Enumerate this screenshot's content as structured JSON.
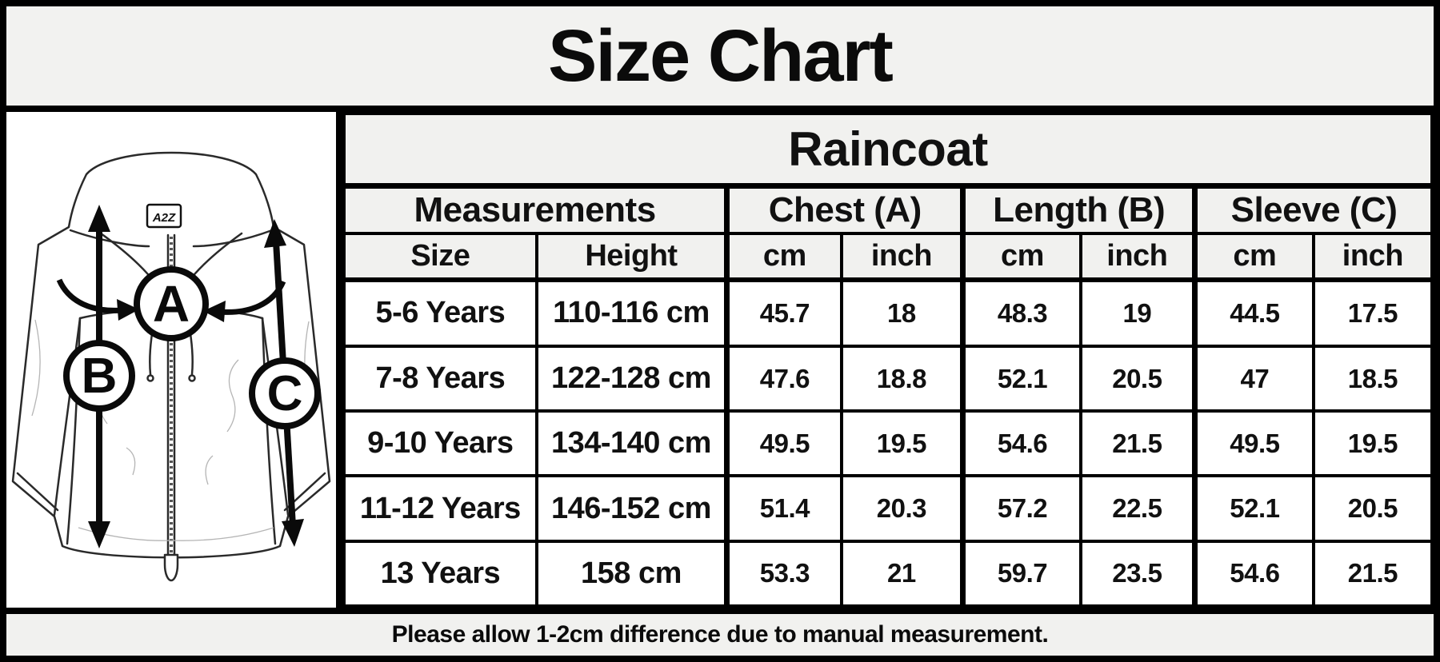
{
  "title": "Size Chart",
  "footer_note": "Please allow 1-2cm difference due to manual measurement.",
  "diagram": {
    "brand": "A2Z",
    "label_a": "A",
    "label_b": "B",
    "label_c": "C"
  },
  "colors": {
    "band_bg": "#f1f1ef",
    "cell_bg": "#ffffff",
    "border": "#000000",
    "text": "#111111"
  },
  "chart_data": {
    "type": "table",
    "title": "Raincoat",
    "group_header": "Measurements",
    "groups": [
      {
        "label": "Chest (A)"
      },
      {
        "label": "Length (B)"
      },
      {
        "label": "Sleeve (C)"
      }
    ],
    "columns": [
      "Size",
      "Height",
      "cm",
      "inch",
      "cm",
      "inch",
      "cm",
      "inch"
    ],
    "column_keys": [
      "size",
      "height",
      "chest-cm",
      "chest-inch",
      "length-cm",
      "length-inch",
      "sleeve-cm",
      "sleeve-inch"
    ],
    "rows": [
      [
        "5-6 Years",
        "110-116 cm",
        "45.7",
        "18",
        "48.3",
        "19",
        "44.5",
        "17.5"
      ],
      [
        "7-8 Years",
        "122-128 cm",
        "47.6",
        "18.8",
        "52.1",
        "20.5",
        "47",
        "18.5"
      ],
      [
        "9-10 Years",
        "134-140 cm",
        "49.5",
        "19.5",
        "54.6",
        "21.5",
        "49.5",
        "19.5"
      ],
      [
        "11-12 Years",
        "146-152 cm",
        "51.4",
        "20.3",
        "57.2",
        "22.5",
        "52.1",
        "20.5"
      ],
      [
        "13 Years",
        "158 cm",
        "53.3",
        "21",
        "59.7",
        "23.5",
        "54.6",
        "21.5"
      ]
    ]
  }
}
